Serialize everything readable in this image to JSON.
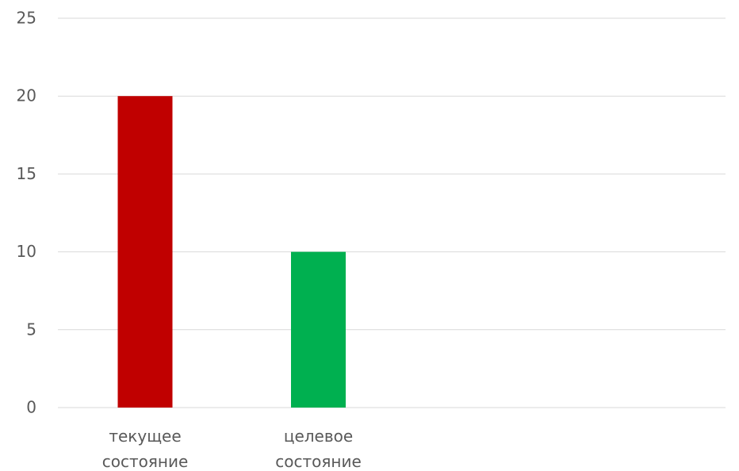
{
  "chart_data": {
    "type": "bar",
    "categories": [
      "текущее состояние",
      "целевое состояние",
      null,
      null
    ],
    "values": [
      20,
      10,
      null,
      null
    ],
    "colors": [
      "#c00000",
      "#00b050",
      null,
      null
    ],
    "ylim": [
      0,
      25
    ],
    "yticks": [
      0,
      5,
      10,
      15,
      20,
      25
    ],
    "grid": true
  }
}
